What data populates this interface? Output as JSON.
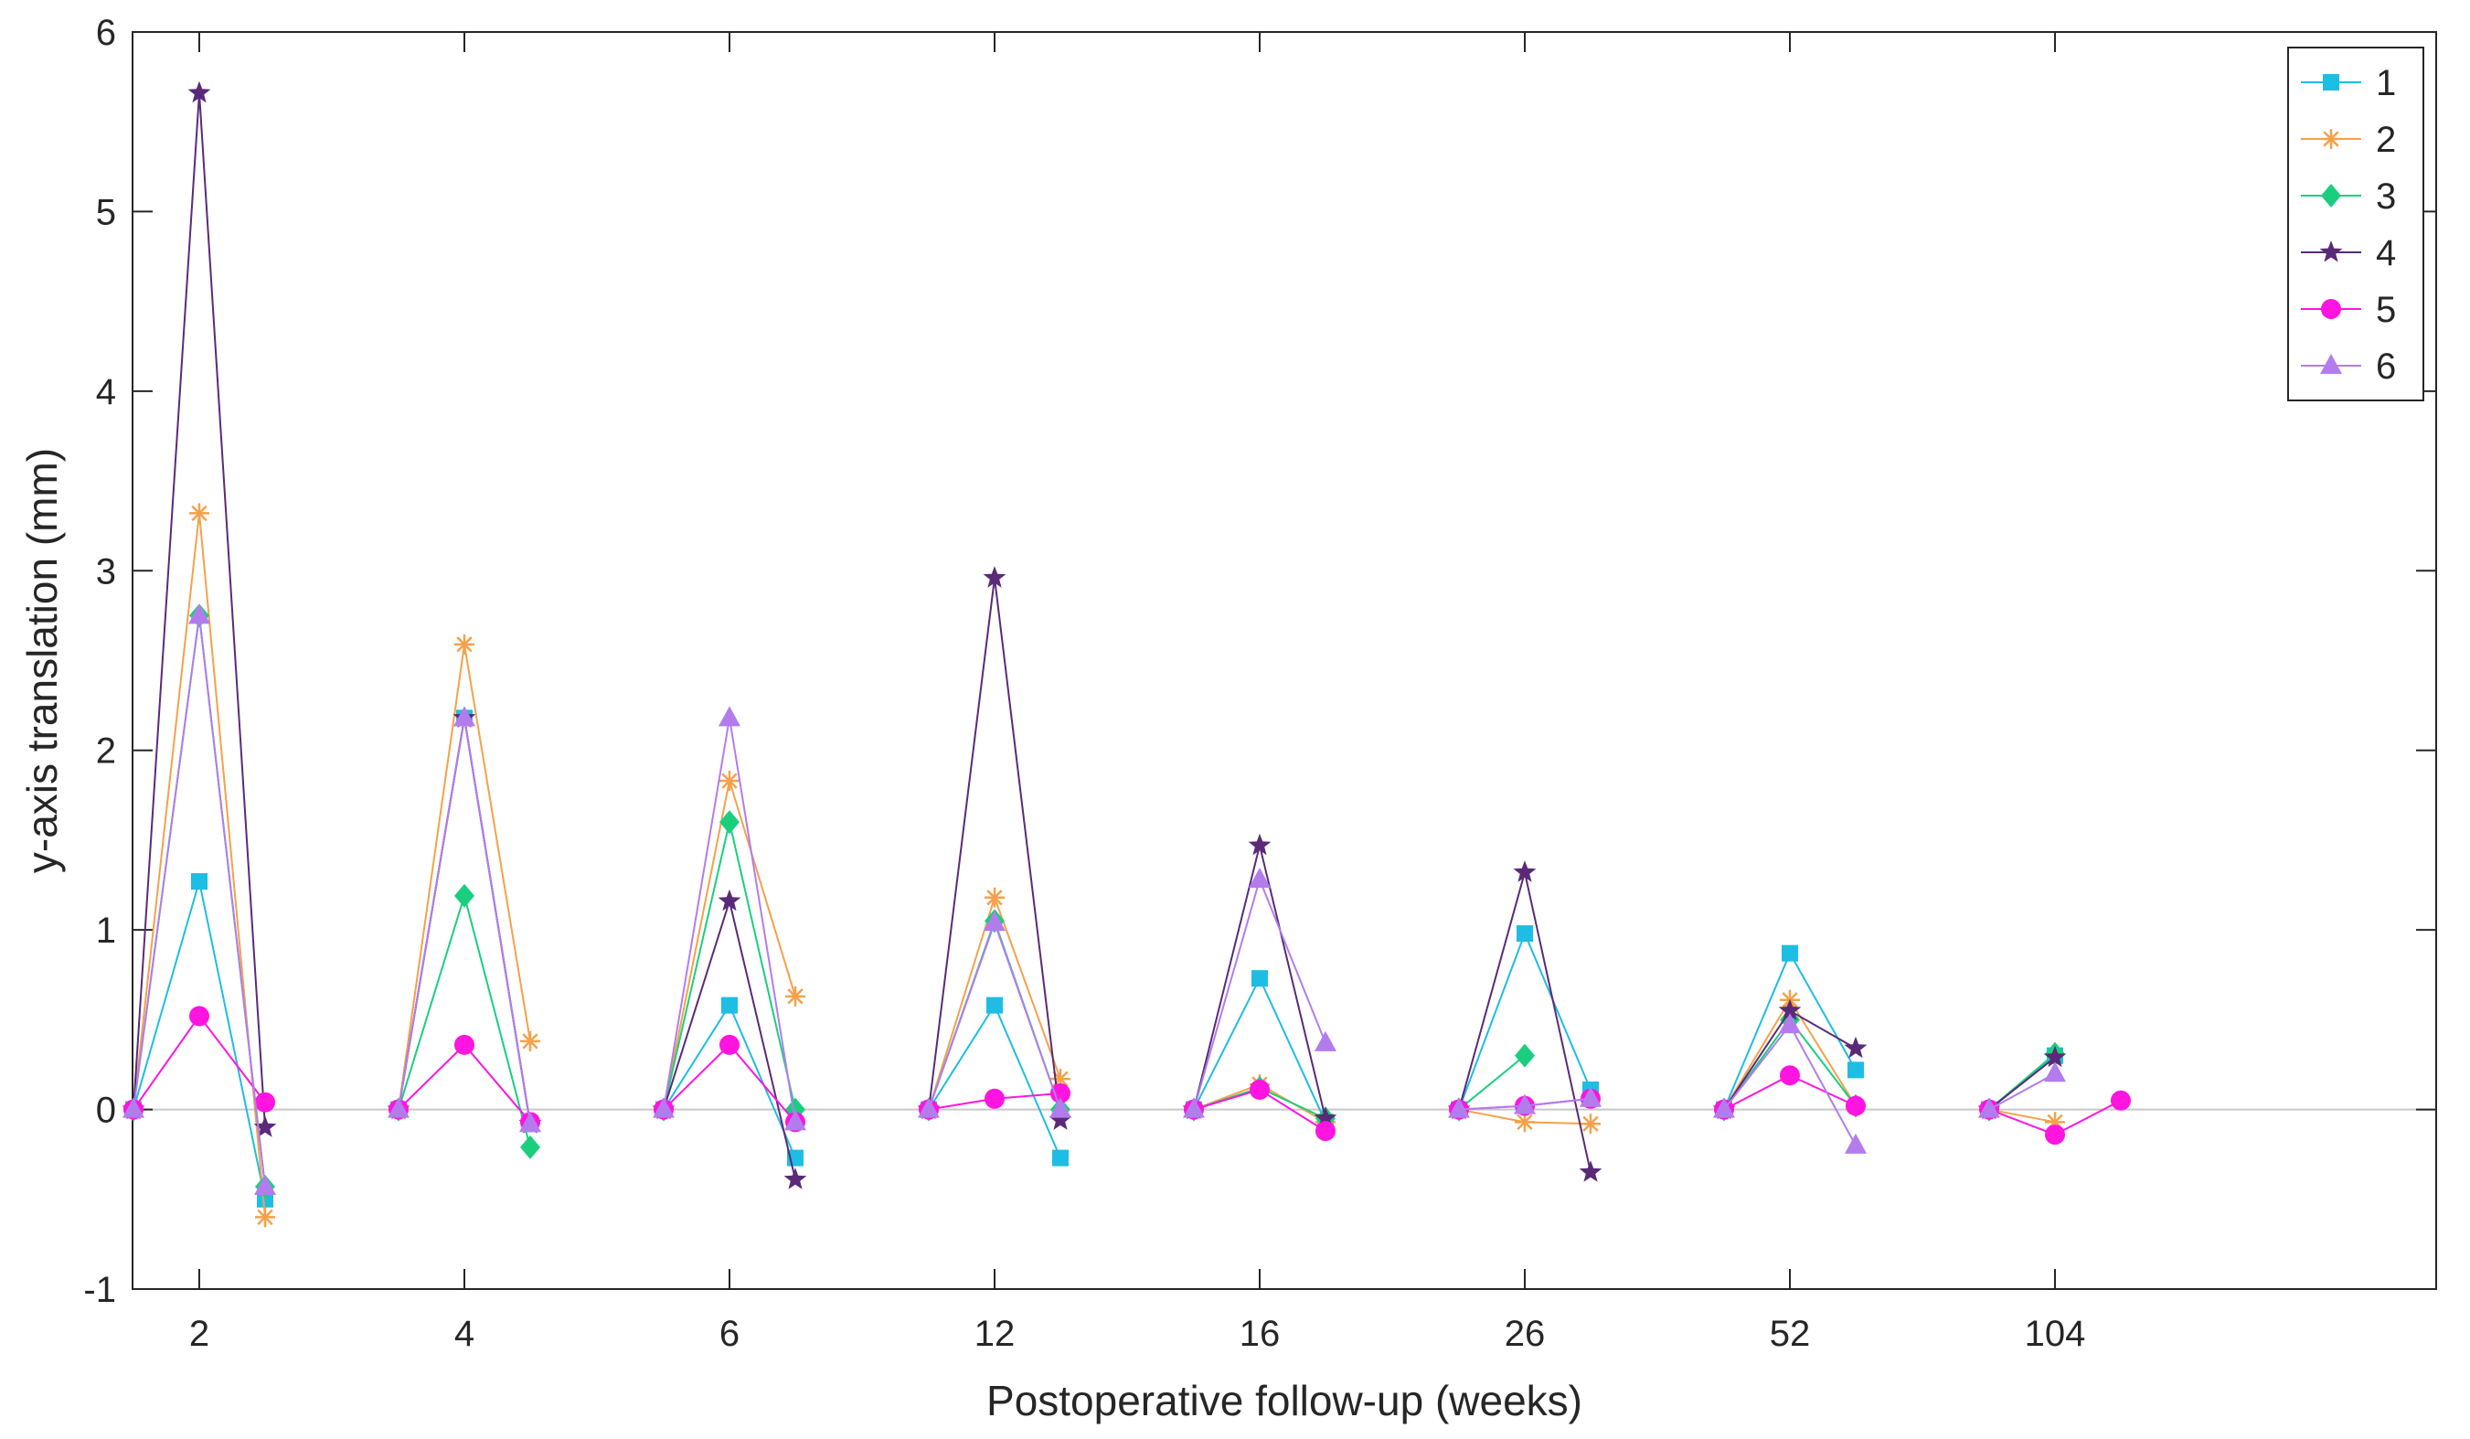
{
  "chart_data": {
    "type": "line",
    "title": "",
    "xlabel": "Postoperative follow-up (weeks)",
    "ylabel": "y-axis translation (mm)",
    "categories": [
      "2",
      "4",
      "6",
      "12",
      "16",
      "26",
      "52",
      "104"
    ],
    "ylim": [
      -1,
      6
    ],
    "yticks": [
      -1,
      0,
      1,
      2,
      3,
      4,
      5,
      6
    ],
    "grid": false,
    "legend_position": "top-right",
    "zero_line": true,
    "series": [
      {
        "name": "1",
        "color": "#1ebde3",
        "marker": "square",
        "values": [
          [
            0,
            1.27,
            -0.5
          ],
          [
            0,
            2.18,
            -0.08
          ],
          [
            0,
            0.58,
            -0.27
          ],
          [
            0,
            0.58,
            -0.27
          ],
          [
            0,
            0.73,
            -0.07
          ],
          [
            0,
            0.98,
            0.11
          ],
          [
            0,
            0.87,
            0.22
          ],
          [
            0,
            0.3,
            null
          ]
        ]
      },
      {
        "name": "2",
        "color": "#f5a14a",
        "marker": "asterisk",
        "values": [
          [
            0,
            3.32,
            -0.6
          ],
          [
            0,
            2.59,
            0.38
          ],
          [
            0,
            1.83,
            0.63
          ],
          [
            0,
            1.18,
            0.17
          ],
          [
            0,
            0.14,
            -0.07
          ],
          [
            0,
            -0.07,
            -0.08
          ],
          [
            0,
            0.61,
            0.02
          ],
          [
            0,
            -0.07,
            null
          ]
        ]
      },
      {
        "name": "3",
        "color": "#19cf7e",
        "marker": "diamond",
        "values": [
          [
            0,
            2.75,
            -0.43
          ],
          [
            0,
            1.19,
            -0.21
          ],
          [
            0,
            1.6,
            0.0
          ],
          [
            0,
            1.05,
            0.0
          ],
          [
            0,
            0.12,
            -0.05
          ],
          [
            0,
            0.3,
            null
          ],
          [
            0,
            0.5,
            0.02
          ],
          [
            0,
            0.31,
            null
          ]
        ]
      },
      {
        "name": "4",
        "color": "#5a2a78",
        "marker": "star",
        "values": [
          [
            0,
            5.66,
            -0.1
          ],
          [
            0,
            2.18,
            -0.08
          ],
          [
            0,
            1.16,
            -0.39
          ],
          [
            0,
            2.96,
            -0.06
          ],
          [
            0,
            1.47,
            -0.05
          ],
          [
            0,
            1.32,
            -0.35
          ],
          [
            0,
            0.55,
            0.34
          ],
          [
            0,
            0.29,
            null
          ]
        ]
      },
      {
        "name": "5",
        "color": "#ff14e0",
        "marker": "circle",
        "values": [
          [
            0,
            0.52,
            0.04
          ],
          [
            0,
            0.36,
            -0.07
          ],
          [
            0,
            0.36,
            -0.07
          ],
          [
            0,
            0.06,
            0.09
          ],
          [
            0,
            0.11,
            -0.12
          ],
          [
            0,
            0.02,
            0.06
          ],
          [
            0,
            0.19,
            0.02
          ],
          [
            0,
            -0.14,
            0.05
          ]
        ]
      },
      {
        "name": "6",
        "color": "#b37ced",
        "marker": "triangle",
        "values": [
          [
            0,
            2.75,
            -0.43
          ],
          [
            0,
            2.18,
            -0.08
          ],
          [
            0,
            2.18,
            -0.07
          ],
          [
            0,
            1.04,
            0.0
          ],
          [
            0,
            1.28,
            0.37
          ],
          [
            0,
            0.02,
            0.06
          ],
          [
            0,
            0.47,
            -0.2
          ],
          [
            0,
            0.2,
            null
          ]
        ]
      }
    ]
  }
}
